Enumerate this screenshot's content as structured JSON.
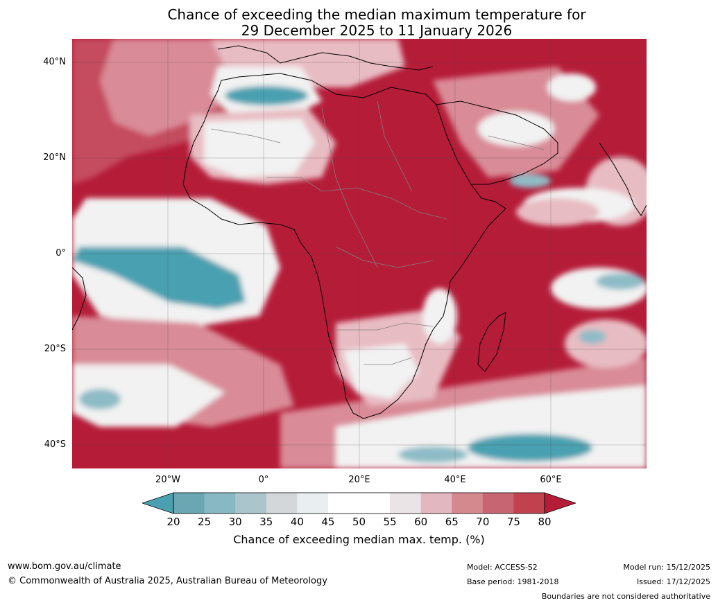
{
  "title": {
    "line1": "Chance of exceeding the median maximum temperature for",
    "line2": "29 December 2025 to 11 January 2026"
  },
  "map": {
    "lat_labels": [
      "40°N",
      "20°N",
      "0°",
      "20°S",
      "40°S"
    ],
    "lon_labels": [
      "20°W",
      "0°",
      "20°E",
      "40°E",
      "60°E"
    ],
    "colors": {
      "very_high": "#b51c38",
      "high": "#c54b5e",
      "mid_high": "#d98b97",
      "light_pink": "#e8bcc3",
      "neutral": "#f2f2f2",
      "low": "#8ebcc6",
      "very_low": "#4aa0b0",
      "coast": "#000000",
      "border": "#808080"
    }
  },
  "colorbar": {
    "ticks": [
      "20",
      "25",
      "30",
      "35",
      "40",
      "45",
      "50",
      "55",
      "60",
      "65",
      "70",
      "75",
      "80"
    ],
    "colors": [
      "#6ba6b3",
      "#88b8c4",
      "#aac5cc",
      "#d3d7d9",
      "#e9eef0",
      "#ffffff",
      "#ffffff",
      "#ebe4e6",
      "#e2b7bf",
      "#d4898f",
      "#c86572",
      "#c1414f"
    ],
    "end_low": "#4aa0b0",
    "end_high": "#b51c38",
    "label": "Chance of exceeding median max. temp. (%)"
  },
  "footer": {
    "website": "www.bom.gov.au/climate",
    "copyright": "© Commonwealth of Australia 2025, Australian Bureau of Meteorology",
    "model": "Model: ACCESS-S2",
    "base_period": "Base period: 1981-2018",
    "model_run": "Model run: 15/12/2025",
    "issued": "Issued: 17/12/2025",
    "disclaimer": "Boundaries are not considered authoritative"
  }
}
